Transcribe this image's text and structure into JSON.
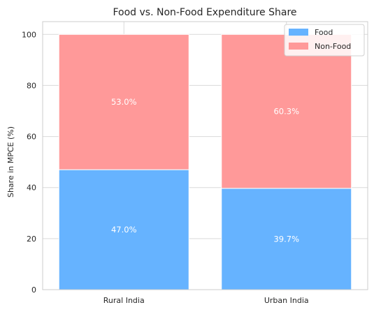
{
  "chart_data": {
    "type": "bar",
    "stacked": true,
    "title": "Food vs. Non-Food Expenditure Share",
    "xlabel": "",
    "ylabel": "Share in MPCE (%)",
    "ylim": [
      0,
      105
    ],
    "yticks": [
      0,
      20,
      40,
      60,
      80,
      100
    ],
    "categories": [
      "Rural India",
      "Urban India"
    ],
    "series": [
      {
        "name": "Food",
        "values": [
          47.0,
          39.7
        ],
        "labels": [
          "47.0%",
          "39.7%"
        ],
        "color": "#66b3ff"
      },
      {
        "name": "Non-Food",
        "values": [
          53.0,
          60.3
        ],
        "labels": [
          "53.0%",
          "60.3%"
        ],
        "color": "#ff9999"
      }
    ],
    "grid": true,
    "legend_position": "top-right"
  }
}
